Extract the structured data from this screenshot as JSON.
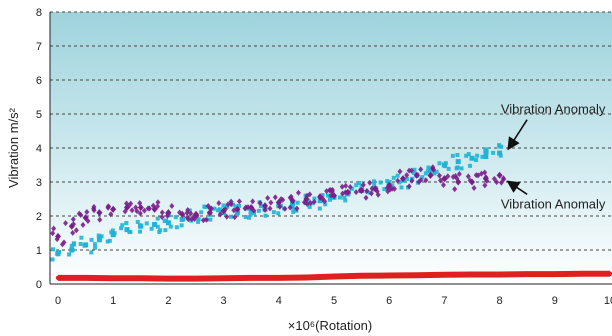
{
  "chart_data": {
    "type": "scatter",
    "xlabel": "×10⁶(Rotation)",
    "ylabel": "Vibration m/s²",
    "xlim": [
      0,
      10
    ],
    "ylim": [
      0,
      8
    ],
    "x_ticks": [
      "0",
      "1",
      "2",
      "3",
      "4",
      "5",
      "6",
      "7",
      "8",
      "9",
      "10"
    ],
    "y_ticks": [
      "0",
      "1",
      "2",
      "3",
      "4",
      "5",
      "6",
      "7",
      "8"
    ],
    "grid": "horizontal dashed",
    "background_gradient": [
      "#9fd3dc",
      "#ffffff"
    ],
    "series": [
      {
        "color": "#1fb4d6",
        "marker": "square",
        "x": [
          0.0,
          0.25,
          0.5,
          0.75,
          1.0,
          1.25,
          1.5,
          1.75,
          2.0,
          2.25,
          2.5,
          2.75,
          3.0,
          3.25,
          3.5,
          3.75,
          4.0,
          4.25,
          4.5,
          4.75,
          5.0,
          5.25,
          5.5,
          5.75,
          6.0,
          6.25,
          6.5,
          6.75,
          7.0,
          7.25,
          7.5,
          7.75,
          8.0
        ],
        "y": [
          0.9,
          1.0,
          1.15,
          1.3,
          1.45,
          1.6,
          1.7,
          1.75,
          1.8,
          1.9,
          2.0,
          2.05,
          2.1,
          2.1,
          2.15,
          2.2,
          2.3,
          2.35,
          2.4,
          2.45,
          2.55,
          2.65,
          2.75,
          2.8,
          2.9,
          3.05,
          3.2,
          3.35,
          3.5,
          3.6,
          3.7,
          3.75,
          3.85
        ]
      },
      {
        "color": "#7a1f8a",
        "marker": "diamond",
        "x": [
          0.0,
          0.25,
          0.5,
          0.75,
          1.0,
          1.25,
          1.5,
          1.75,
          2.0,
          2.25,
          2.5,
          2.75,
          3.0,
          3.25,
          3.5,
          3.75,
          4.0,
          4.25,
          4.5,
          4.75,
          5.0,
          5.25,
          5.5,
          5.75,
          6.0,
          6.25,
          6.5,
          6.75,
          7.0,
          7.25,
          7.5,
          7.75,
          8.0
        ],
        "y": [
          1.4,
          1.7,
          1.95,
          2.1,
          2.2,
          2.25,
          2.25,
          2.2,
          2.1,
          2.05,
          2.05,
          2.1,
          2.15,
          2.2,
          2.25,
          2.3,
          2.4,
          2.45,
          2.5,
          2.55,
          2.6,
          2.7,
          2.75,
          2.8,
          2.9,
          3.1,
          3.2,
          3.2,
          3.1,
          3.0,
          3.0,
          3.1,
          3.2
        ]
      },
      {
        "color": "#e02020",
        "marker": "dense-band",
        "x": [
          0.0,
          0.5,
          1.0,
          1.5,
          2.0,
          2.5,
          3.0,
          3.5,
          4.0,
          4.5,
          5.0,
          5.5,
          6.0,
          6.5,
          7.0,
          7.5,
          8.0,
          8.5,
          9.0,
          9.5,
          10.0
        ],
        "y": [
          0.18,
          0.18,
          0.17,
          0.17,
          0.16,
          0.16,
          0.17,
          0.18,
          0.18,
          0.19,
          0.22,
          0.24,
          0.25,
          0.26,
          0.27,
          0.28,
          0.28,
          0.29,
          0.29,
          0.3,
          0.3
        ]
      }
    ],
    "annotations": [
      {
        "text": "Vibration Anomaly",
        "x": 8.1,
        "y": 3.95,
        "placement": "above-left"
      },
      {
        "text": "Vibration Anomaly",
        "x": 8.1,
        "y": 3.05,
        "placement": "below-left"
      }
    ]
  }
}
